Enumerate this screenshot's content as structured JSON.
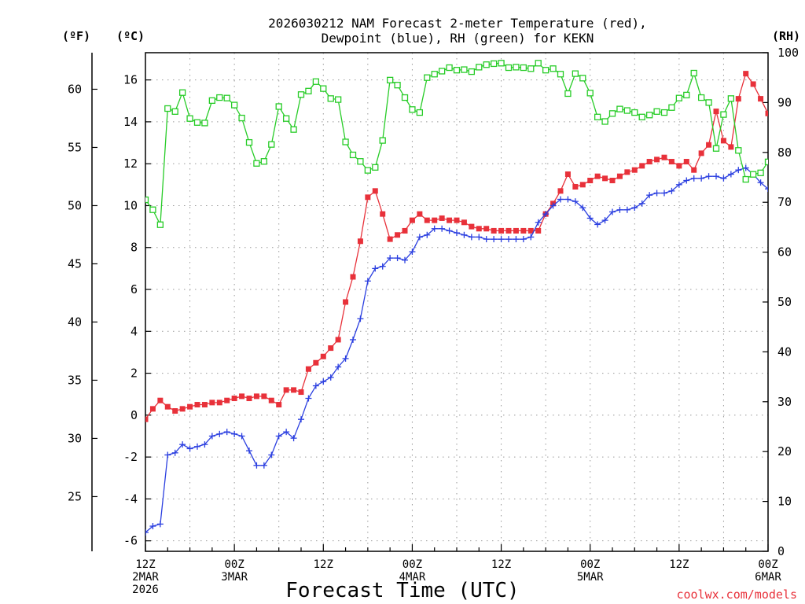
{
  "chart_data": {
    "type": "line",
    "title_lines": [
      "2026030212 NAM Forecast 2-meter Temperature (red),",
      "Dewpoint (blue), RH (green) for KEKN"
    ],
    "xlabel": "Forecast Time (UTC)",
    "credit": "coolwx.com/models",
    "units": {
      "fahrenheit": "(ºF)",
      "celsius": "(ºC)",
      "rh": "(RH)"
    },
    "x_hours_range": [
      0,
      84
    ],
    "x_ticks": [
      {
        "hour": 0,
        "lines": [
          "12Z",
          "2MAR",
          "2026"
        ]
      },
      {
        "hour": 12,
        "lines": [
          "00Z",
          "3MAR"
        ]
      },
      {
        "hour": 24,
        "lines": [
          "12Z"
        ]
      },
      {
        "hour": 36,
        "lines": [
          "00Z",
          "4MAR"
        ]
      },
      {
        "hour": 48,
        "lines": [
          "12Z"
        ]
      },
      {
        "hour": 60,
        "lines": [
          "00Z",
          "5MAR"
        ]
      },
      {
        "hour": 72,
        "lines": [
          "12Z"
        ]
      },
      {
        "hour": 84,
        "lines": [
          "00Z",
          "6MAR"
        ]
      }
    ],
    "celsius_axis": {
      "range": [
        -6.5,
        17.3
      ],
      "ticks": [
        -6,
        -4,
        -2,
        0,
        2,
        4,
        6,
        8,
        10,
        12,
        14,
        16
      ],
      "grid": true
    },
    "fahrenheit_axis": {
      "ticks": [
        25,
        30,
        35,
        40,
        45,
        50,
        55,
        60
      ]
    },
    "rh_axis": {
      "range": [
        0,
        100
      ],
      "ticks": [
        0,
        10,
        20,
        30,
        40,
        50,
        60,
        70,
        80,
        90,
        100
      ]
    },
    "series": [
      {
        "name": "2-meter Temperature",
        "unit": "°C",
        "color": "#e8313a",
        "marker": "filled-square",
        "values": [
          -0.2,
          0.3,
          0.7,
          0.4,
          0.2,
          0.3,
          0.4,
          0.5,
          0.5,
          0.6,
          0.6,
          0.7,
          0.8,
          0.9,
          0.8,
          0.9,
          0.9,
          0.7,
          0.5,
          1.2,
          1.2,
          1.1,
          2.2,
          2.5,
          2.8,
          3.2,
          3.6,
          5.4,
          6.6,
          8.3,
          10.4,
          10.7,
          9.6,
          8.4,
          8.6,
          8.8,
          9.3,
          9.6,
          9.3,
          9.3,
          9.4,
          9.3,
          9.3,
          9.2,
          9.0,
          8.9,
          8.9,
          8.8,
          8.8,
          8.8,
          8.8,
          8.8,
          8.8,
          8.8,
          9.6,
          10.1,
          10.7,
          11.5,
          10.9,
          11.0,
          11.2,
          11.4,
          11.3,
          11.2,
          11.4,
          11.6,
          11.7,
          11.9,
          12.1,
          12.2,
          12.3,
          12.1,
          11.9,
          12.1,
          11.7,
          12.5,
          12.9,
          14.5,
          13.1,
          12.8,
          15.1,
          16.3,
          15.8,
          15.1,
          14.4
        ]
      },
      {
        "name": "Dewpoint",
        "unit": "°C",
        "color": "#2b3fe0",
        "marker": "plus",
        "values": [
          -5.6,
          -5.3,
          -5.2,
          -1.9,
          -1.8,
          -1.4,
          -1.6,
          -1.5,
          -1.4,
          -1.0,
          -0.9,
          -0.8,
          -0.9,
          -1.0,
          -1.7,
          -2.4,
          -2.4,
          -1.9,
          -1.0,
          -0.8,
          -1.1,
          -0.2,
          0.8,
          1.4,
          1.6,
          1.8,
          2.3,
          2.7,
          3.6,
          4.6,
          6.4,
          7.0,
          7.1,
          7.5,
          7.5,
          7.4,
          7.8,
          8.5,
          8.6,
          8.9,
          8.9,
          8.8,
          8.7,
          8.6,
          8.5,
          8.5,
          8.4,
          8.4,
          8.4,
          8.4,
          8.4,
          8.4,
          8.5,
          9.2,
          9.6,
          10.0,
          10.3,
          10.3,
          10.2,
          9.9,
          9.4,
          9.1,
          9.3,
          9.7,
          9.8,
          9.8,
          9.9,
          10.1,
          10.5,
          10.6,
          10.6,
          10.7,
          11.0,
          11.2,
          11.3,
          11.3,
          11.4,
          11.4,
          11.3,
          11.5,
          11.7,
          11.8,
          11.5,
          11.1,
          10.8
        ]
      },
      {
        "name": "RH",
        "unit": "%",
        "color": "#27cc27",
        "marker": "open-square",
        "values": [
          70.5,
          68.5,
          65.5,
          88.8,
          88.2,
          92.0,
          86.8,
          86.0,
          85.9,
          90.4,
          91.0,
          90.9,
          89.5,
          86.9,
          82.0,
          77.8,
          78.2,
          81.6,
          89.2,
          86.8,
          84.6,
          91.6,
          92.3,
          94.2,
          92.8,
          90.8,
          90.6,
          82.1,
          79.5,
          78.2,
          76.4,
          77.0,
          82.4,
          94.5,
          93.5,
          91.0,
          88.6,
          88.0,
          95.0,
          95.7,
          96.3,
          97.0,
          96.5,
          96.6,
          96.2,
          97.1,
          97.6,
          97.8,
          97.9,
          97.0,
          97.1,
          97.0,
          96.8,
          97.9,
          96.5,
          96.8,
          95.7,
          91.8,
          95.8,
          94.9,
          91.9,
          87.1,
          86.2,
          87.8,
          88.7,
          88.4,
          88.0,
          87.1,
          87.5,
          88.2,
          88.0,
          89.0,
          90.9,
          91.5,
          95.9,
          91.0,
          90.0,
          80.8,
          87.6,
          90.8,
          80.4,
          74.6,
          75.6,
          75.9,
          78.1
        ]
      }
    ]
  }
}
